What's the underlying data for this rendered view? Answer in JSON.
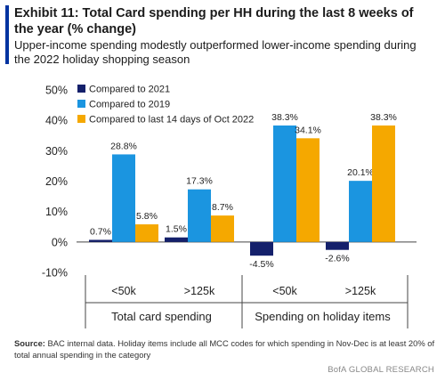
{
  "header": {
    "title": "Exhibit 11: Total Card spending per HH during the last 8 weeks of the year (% change)",
    "subtitle": "Upper-income spending modestly outperformed lower-income spending during the 2022 holiday shopping season"
  },
  "footer": {
    "source_label": "Source:",
    "source_text": "BAC internal data. Holiday items include all MCC codes for which spending in Nov-Dec is at least 20% of total annual spending in the category",
    "brand": "BofA GLOBAL RESEARCH"
  },
  "colors": {
    "accent": "#0033a0",
    "series": [
      "#14206b",
      "#1b95e0",
      "#f5a800"
    ]
  },
  "chart_data": {
    "type": "bar",
    "categories": [
      "<50k",
      ">125k",
      "<50k",
      ">125k"
    ],
    "groups": [
      {
        "label": "Total card spending",
        "categories": [
          0,
          1
        ]
      },
      {
        "label": "Spending on holiday items",
        "categories": [
          2,
          3
        ]
      }
    ],
    "series": [
      {
        "name": "Compared to 2021",
        "values": [
          0.7,
          1.5,
          -4.5,
          -2.6
        ],
        "labels": [
          "0.7%",
          "1.5%",
          "-4.5%",
          "-2.6%"
        ]
      },
      {
        "name": "Compared to 2019",
        "values": [
          28.8,
          17.3,
          38.3,
          20.1
        ],
        "labels": [
          "28.8%",
          "17.3%",
          "38.3%",
          "20.1%"
        ]
      },
      {
        "name": "Compared to last 14 days of Oct 2022",
        "values": [
          5.8,
          8.7,
          34.1,
          38.3
        ],
        "labels": [
          "5.8%",
          "8.7%",
          "34.1%",
          "38.3%"
        ]
      }
    ],
    "ylim": [
      -10,
      50
    ],
    "yticks": [
      -10,
      0,
      10,
      20,
      30,
      40,
      50
    ],
    "ytick_labels": [
      "-10%",
      "0%",
      "10%",
      "20%",
      "30%",
      "40%",
      "50%"
    ],
    "legend_position": "top-left",
    "grid": false
  }
}
